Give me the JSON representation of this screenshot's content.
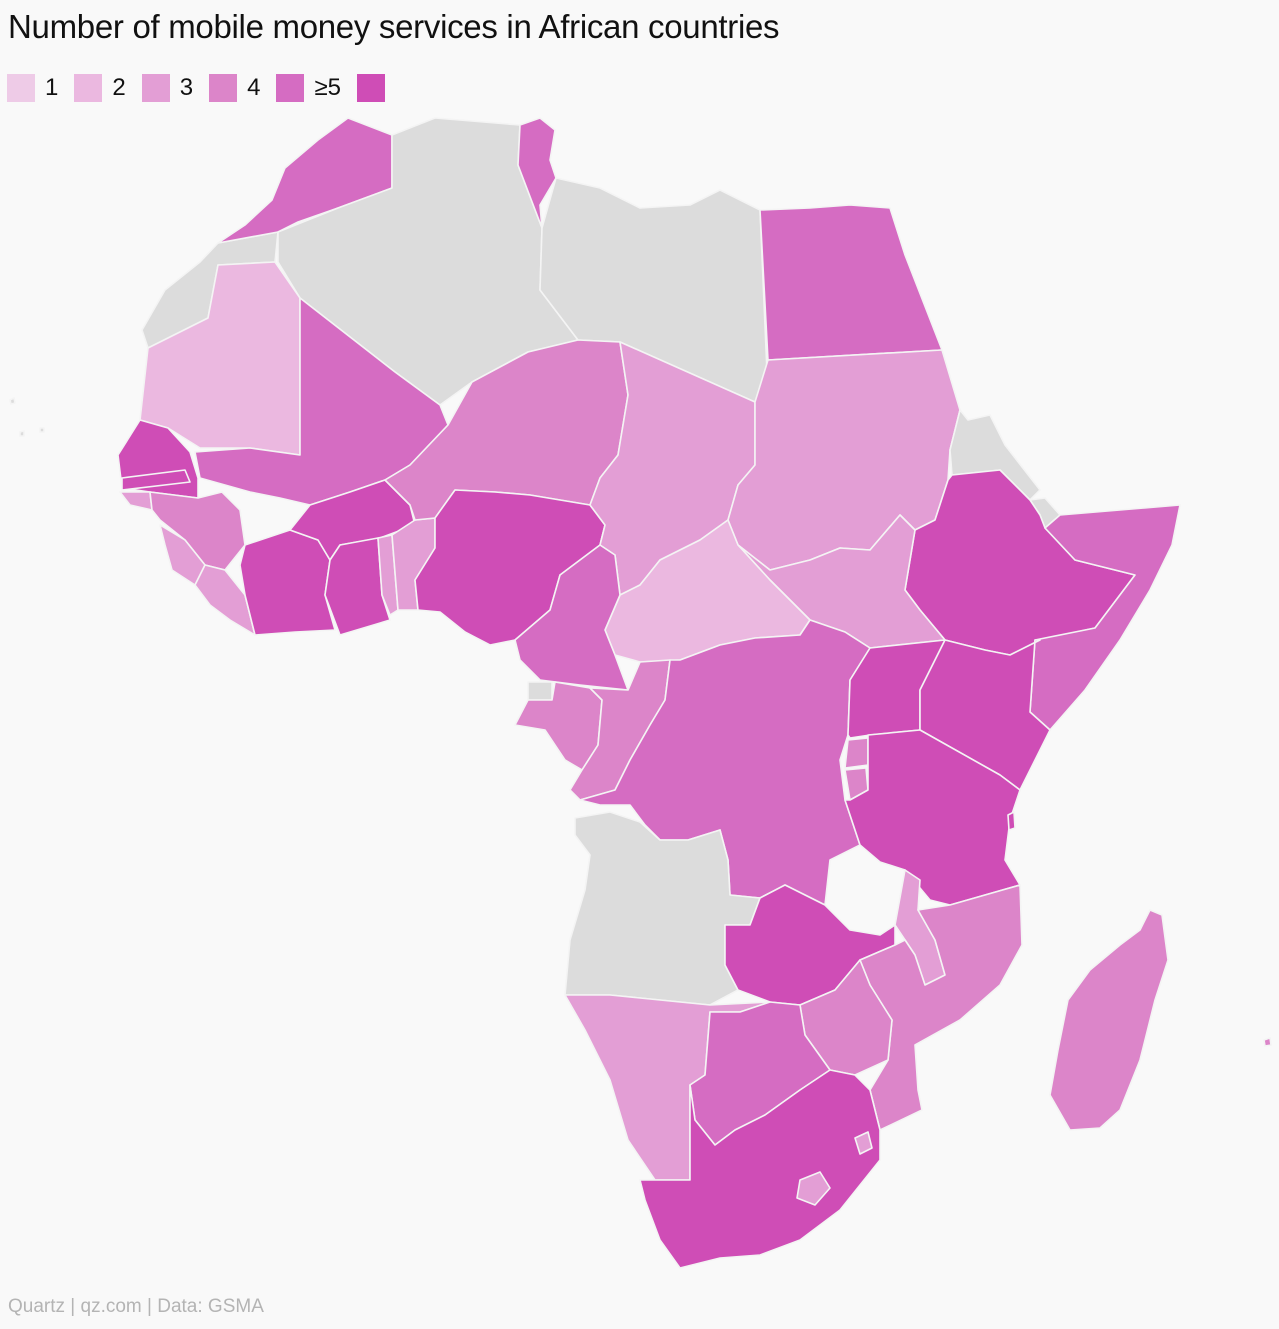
{
  "title": "Number of mobile money services in African countries",
  "legend": [
    {
      "label": "1",
      "color": "#eecbe7"
    },
    {
      "label": "2",
      "color": "#ebb8e0"
    },
    {
      "label": "3",
      "color": "#e39ed5"
    },
    {
      "label": "4",
      "color": "#dc85c9"
    },
    {
      "label": "≥5",
      "color": "#d56cc2"
    },
    {
      "label": "",
      "color": "#cf4db6"
    }
  ],
  "no_data_color": "#dcdcdc",
  "border_color": "#f4f4f4",
  "source": "Quartz | qz.com | Data: GSMA"
}
